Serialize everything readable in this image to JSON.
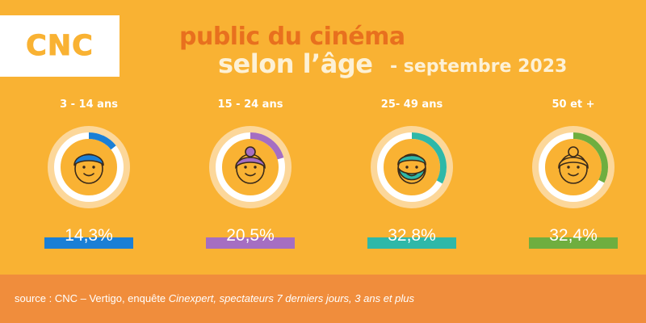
{
  "logo": {
    "text": "CNC"
  },
  "title": {
    "line1": "public du cinéma",
    "line2": "selon l’âge",
    "line3": "- septembre 2023"
  },
  "chart_data": {
    "type": "pie",
    "categories": [
      "3 - 14 ans",
      "15 - 24 ans",
      "25- 49 ans",
      "50 et +"
    ],
    "values": [
      14.3,
      20.5,
      32.8,
      32.4
    ],
    "value_labels": [
      "14,3%",
      "20,5%",
      "32,8%",
      "32,4%"
    ],
    "colors": [
      "#1A7FD6",
      "#A56EC2",
      "#2EB8A8",
      "#6FAE3F"
    ],
    "icons": [
      "boy-face-icon",
      "girl-face-icon",
      "bearded-man-face-icon",
      "grandmother-face-icon"
    ]
  },
  "footer": {
    "prefix": "source : CNC – Vertigo, enquête ",
    "italic": "Cinexpert, spectateurs 7 derniers jours, 3 ans et plus"
  }
}
